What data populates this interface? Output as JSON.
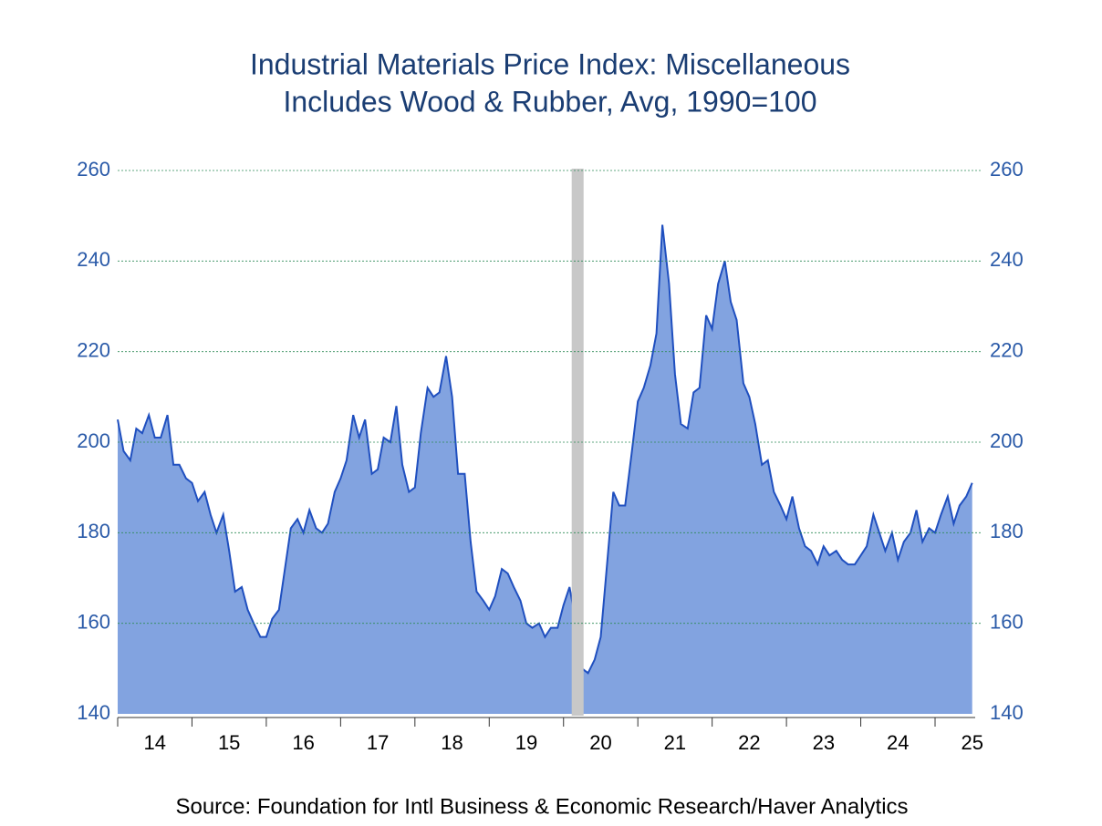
{
  "chart_data": {
    "type": "area",
    "title": "Industrial Materials Price Index: Miscellaneous",
    "subtitle": "Includes Wood & Rubber, Avg, 1990=100",
    "source": "Source:  Foundation for Intl Business & Economic Research/Haver Analytics",
    "x": [
      2014.0,
      2014.08,
      2014.17,
      2014.25,
      2014.33,
      2014.42,
      2014.5,
      2014.58,
      2014.67,
      2014.75,
      2014.83,
      2014.92,
      2015.0,
      2015.08,
      2015.17,
      2015.25,
      2015.33,
      2015.42,
      2015.5,
      2015.58,
      2015.67,
      2015.75,
      2015.83,
      2015.92,
      2016.0,
      2016.08,
      2016.17,
      2016.25,
      2016.33,
      2016.42,
      2016.5,
      2016.58,
      2016.67,
      2016.75,
      2016.83,
      2016.92,
      2017.0,
      2017.08,
      2017.17,
      2017.25,
      2017.33,
      2017.42,
      2017.5,
      2017.58,
      2017.67,
      2017.75,
      2017.83,
      2017.92,
      2018.0,
      2018.08,
      2018.17,
      2018.25,
      2018.33,
      2018.42,
      2018.5,
      2018.58,
      2018.67,
      2018.75,
      2018.83,
      2018.92,
      2019.0,
      2019.08,
      2019.17,
      2019.25,
      2019.33,
      2019.42,
      2019.5,
      2019.58,
      2019.67,
      2019.75,
      2019.83,
      2019.92,
      2020.0,
      2020.08,
      2020.17,
      2020.25,
      2020.33,
      2020.42,
      2020.5,
      2020.58,
      2020.67,
      2020.75,
      2020.83,
      2020.92,
      2021.0,
      2021.08,
      2021.17,
      2021.25,
      2021.33,
      2021.42,
      2021.5,
      2021.58,
      2021.67,
      2021.75,
      2021.83,
      2021.92,
      2022.0,
      2022.08,
      2022.17,
      2022.25,
      2022.33,
      2022.42,
      2022.5,
      2022.58,
      2022.67,
      2022.75,
      2022.83,
      2022.92,
      2023.0,
      2023.08,
      2023.17,
      2023.25,
      2023.33,
      2023.42,
      2023.5,
      2023.58,
      2023.67,
      2023.75,
      2023.83,
      2023.92,
      2024.0,
      2024.08,
      2024.17,
      2024.25,
      2024.33,
      2024.42,
      2024.5,
      2024.58,
      2024.67,
      2024.75,
      2024.83,
      2024.92,
      2025.0,
      2025.08,
      2025.17,
      2025.25,
      2025.33,
      2025.42,
      2025.5
    ],
    "series": [
      {
        "color": "#1f4fbf",
        "fill": "#82a3e0",
        "values": [
          205,
          198,
          196,
          203,
          202,
          206,
          201,
          201,
          206,
          195,
          195,
          192,
          191,
          187,
          189,
          184,
          180,
          184,
          176,
          167,
          168,
          163,
          160,
          157,
          157,
          161,
          163,
          172,
          181,
          183,
          180,
          185,
          181,
          180,
          182,
          189,
          192,
          196,
          206,
          201,
          205,
          193,
          194,
          201,
          200,
          208,
          195,
          189,
          190,
          202,
          212,
          210,
          211,
          219,
          210,
          193,
          193,
          178,
          167,
          165,
          163,
          166,
          172,
          171,
          168,
          165,
          160,
          159,
          160,
          157,
          159,
          159,
          164,
          168,
          160,
          150,
          149,
          152,
          157,
          172,
          189,
          186,
          186,
          198,
          209,
          212,
          217,
          224,
          248,
          235,
          215,
          204,
          203,
          211,
          212,
          228,
          225,
          235,
          240,
          231,
          227,
          213,
          210,
          204,
          195,
          196,
          189,
          186,
          183,
          188,
          181,
          177,
          176,
          173,
          177,
          175,
          176,
          174,
          173,
          173,
          175,
          177,
          184,
          180,
          176,
          180,
          174,
          178,
          180,
          185,
          178,
          181,
          180,
          184,
          188,
          182,
          186,
          188,
          191
        ]
      }
    ],
    "shading": [
      2020.11,
      2020.27
    ],
    "xlim": [
      2014,
      2025.54
    ],
    "xticks": [
      {
        "value": 2014.5,
        "label": "14"
      },
      {
        "value": 2015.5,
        "label": "15"
      },
      {
        "value": 2016.5,
        "label": "16"
      },
      {
        "value": 2017.5,
        "label": "17"
      },
      {
        "value": 2018.5,
        "label": "18"
      },
      {
        "value": 2019.5,
        "label": "19"
      },
      {
        "value": 2020.5,
        "label": "20"
      },
      {
        "value": 2021.5,
        "label": "21"
      },
      {
        "value": 2022.5,
        "label": "22"
      },
      {
        "value": 2023.5,
        "label": "23"
      },
      {
        "value": 2024.5,
        "label": "24"
      },
      {
        "value": 2025.5,
        "label": "25"
      }
    ],
    "ylim": [
      140,
      260
    ],
    "yticks": [
      140,
      160,
      180,
      200,
      220,
      240,
      260
    ],
    "grid": true
  }
}
